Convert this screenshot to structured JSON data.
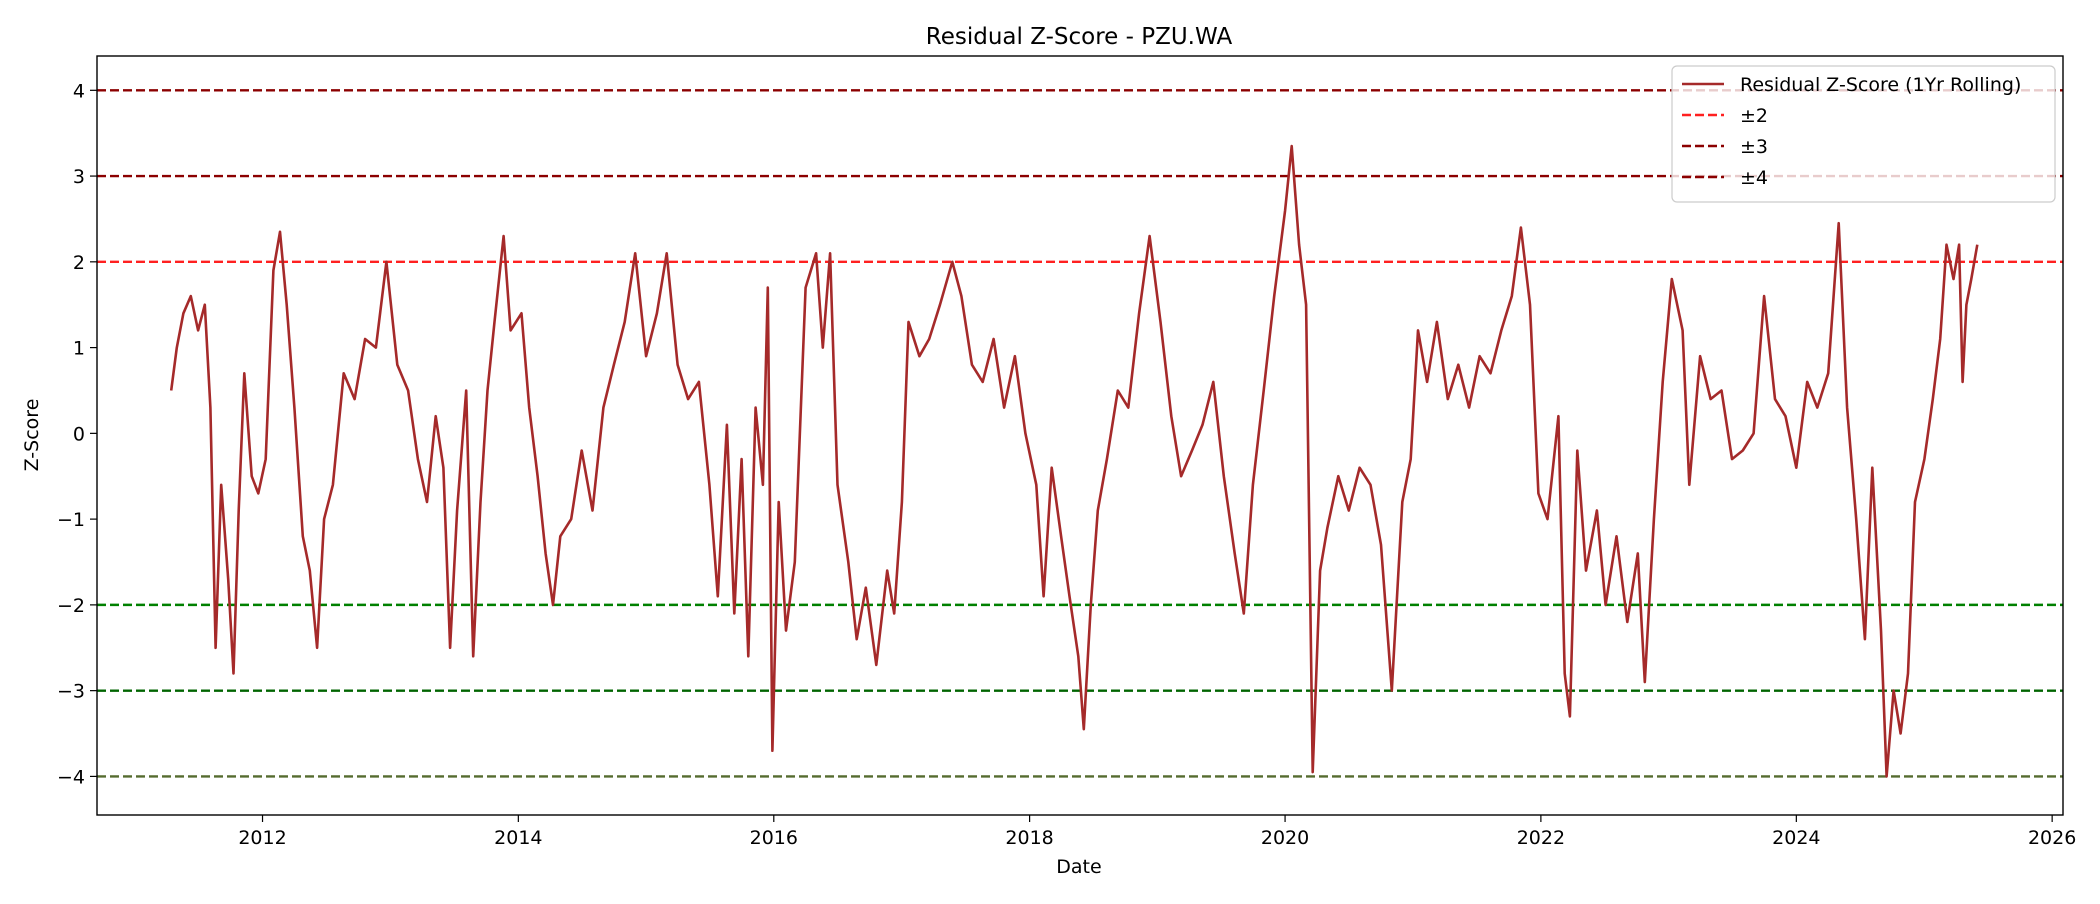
{
  "chart_data": {
    "type": "line",
    "title": "Residual Z-Score - PZU.WA",
    "xlabel": "Date",
    "ylabel": "Z-Score",
    "xlim": [
      "2010-09-15",
      "2026-02-01"
    ],
    "ylim": [
      -4.45,
      4.4
    ],
    "x_ticks": [
      "2012",
      "2014",
      "2016",
      "2018",
      "2020",
      "2022",
      "2024",
      "2026"
    ],
    "y_ticks": [
      "4",
      "3",
      "2",
      "1",
      "0",
      "−1",
      "−2",
      "−3",
      "−4"
    ],
    "grid": false,
    "legend_position": "top-right",
    "series": [
      {
        "name": "Residual Z-Score (1Yr Rolling)",
        "color": "#a52a2a",
        "points": [
          [
            "2011-04-15",
            0.5
          ],
          [
            "2011-05-01",
            1.0
          ],
          [
            "2011-05-20",
            1.4
          ],
          [
            "2011-06-10",
            1.6
          ],
          [
            "2011-07-01",
            1.2
          ],
          [
            "2011-07-20",
            1.5
          ],
          [
            "2011-08-05",
            0.3
          ],
          [
            "2011-08-20",
            -2.5
          ],
          [
            "2011-09-05",
            -0.6
          ],
          [
            "2011-09-25",
            -1.7
          ],
          [
            "2011-10-10",
            -2.8
          ],
          [
            "2011-10-25",
            -0.9
          ],
          [
            "2011-11-10",
            0.7
          ],
          [
            "2011-12-01",
            -0.5
          ],
          [
            "2011-12-20",
            -0.7
          ],
          [
            "2012-01-10",
            -0.3
          ],
          [
            "2012-02-01",
            1.9
          ],
          [
            "2012-02-20",
            2.35
          ],
          [
            "2012-03-10",
            1.5
          ],
          [
            "2012-04-01",
            0.3
          ],
          [
            "2012-04-25",
            -1.2
          ],
          [
            "2012-05-15",
            -1.6
          ],
          [
            "2012-06-05",
            -2.5
          ],
          [
            "2012-06-25",
            -1.0
          ],
          [
            "2012-07-20",
            -0.6
          ],
          [
            "2012-08-20",
            0.7
          ],
          [
            "2012-09-20",
            0.4
          ],
          [
            "2012-10-20",
            1.1
          ],
          [
            "2012-11-20",
            1.0
          ],
          [
            "2012-12-20",
            2.0
          ],
          [
            "2013-01-20",
            0.8
          ],
          [
            "2013-02-20",
            0.5
          ],
          [
            "2013-03-20",
            -0.3
          ],
          [
            "2013-04-15",
            -0.8
          ],
          [
            "2013-05-10",
            0.2
          ],
          [
            "2013-06-01",
            -0.4
          ],
          [
            "2013-06-20",
            -2.5
          ],
          [
            "2013-07-10",
            -0.9
          ],
          [
            "2013-08-05",
            0.5
          ],
          [
            "2013-08-25",
            -2.6
          ],
          [
            "2013-09-15",
            -0.8
          ],
          [
            "2013-10-05",
            0.5
          ],
          [
            "2013-10-25",
            1.3
          ],
          [
            "2013-11-20",
            2.3
          ],
          [
            "2013-12-10",
            1.2
          ],
          [
            "2014-01-10",
            1.4
          ],
          [
            "2014-02-01",
            0.3
          ],
          [
            "2014-02-25",
            -0.5
          ],
          [
            "2014-03-20",
            -1.4
          ],
          [
            "2014-04-10",
            -2.0
          ],
          [
            "2014-05-01",
            -1.2
          ],
          [
            "2014-06-01",
            -1.0
          ],
          [
            "2014-07-01",
            -0.2
          ],
          [
            "2014-08-01",
            -0.9
          ],
          [
            "2014-09-01",
            0.3
          ],
          [
            "2014-10-01",
            0.8
          ],
          [
            "2014-11-01",
            1.3
          ],
          [
            "2014-12-01",
            2.1
          ],
          [
            "2015-01-01",
            0.9
          ],
          [
            "2015-02-01",
            1.4
          ],
          [
            "2015-03-01",
            2.1
          ],
          [
            "2015-04-01",
            0.8
          ],
          [
            "2015-05-01",
            0.4
          ],
          [
            "2015-06-01",
            0.6
          ],
          [
            "2015-07-01",
            -0.6
          ],
          [
            "2015-07-25",
            -1.9
          ],
          [
            "2015-08-20",
            0.1
          ],
          [
            "2015-09-10",
            -2.1
          ],
          [
            "2015-10-01",
            -0.3
          ],
          [
            "2015-10-20",
            -2.6
          ],
          [
            "2015-11-10",
            0.3
          ],
          [
            "2015-12-01",
            -0.6
          ],
          [
            "2015-12-15",
            1.7
          ],
          [
            "2015-12-28",
            -3.7
          ],
          [
            "2016-01-15",
            -0.8
          ],
          [
            "2016-02-05",
            -2.3
          ],
          [
            "2016-03-01",
            -1.5
          ],
          [
            "2016-04-01",
            1.7
          ],
          [
            "2016-05-01",
            2.1
          ],
          [
            "2016-05-20",
            1.0
          ],
          [
            "2016-06-10",
            2.1
          ],
          [
            "2016-07-01",
            -0.6
          ],
          [
            "2016-08-01",
            -1.5
          ],
          [
            "2016-08-25",
            -2.4
          ],
          [
            "2016-09-20",
            -1.8
          ],
          [
            "2016-10-20",
            -2.7
          ],
          [
            "2016-11-20",
            -1.6
          ],
          [
            "2016-12-10",
            -2.1
          ],
          [
            "2017-01-01",
            -0.8
          ],
          [
            "2017-01-20",
            1.3
          ],
          [
            "2017-02-20",
            0.9
          ],
          [
            "2017-03-20",
            1.1
          ],
          [
            "2017-04-20",
            1.5
          ],
          [
            "2017-05-25",
            2.0
          ],
          [
            "2017-06-20",
            1.6
          ],
          [
            "2017-07-20",
            0.8
          ],
          [
            "2017-08-20",
            0.6
          ],
          [
            "2017-09-20",
            1.1
          ],
          [
            "2017-10-20",
            0.3
          ],
          [
            "2017-11-20",
            0.9
          ],
          [
            "2017-12-20",
            0.0
          ],
          [
            "2018-01-20",
            -0.6
          ],
          [
            "2018-02-10",
            -1.9
          ],
          [
            "2018-03-05",
            -0.4
          ],
          [
            "2018-04-01",
            -1.2
          ],
          [
            "2018-04-25",
            -1.9
          ],
          [
            "2018-05-20",
            -2.6
          ],
          [
            "2018-06-05",
            -3.45
          ],
          [
            "2018-06-25",
            -2.0
          ],
          [
            "2018-07-15",
            -0.9
          ],
          [
            "2018-08-10",
            -0.3
          ],
          [
            "2018-09-10",
            0.5
          ],
          [
            "2018-10-10",
            0.3
          ],
          [
            "2018-11-10",
            1.4
          ],
          [
            "2018-12-10",
            2.3
          ],
          [
            "2019-01-10",
            1.3
          ],
          [
            "2019-02-10",
            0.2
          ],
          [
            "2019-03-10",
            -0.5
          ],
          [
            "2019-04-10",
            -0.2
          ],
          [
            "2019-05-10",
            0.1
          ],
          [
            "2019-06-10",
            0.6
          ],
          [
            "2019-07-10",
            -0.5
          ],
          [
            "2019-08-10",
            -1.4
          ],
          [
            "2019-09-05",
            -2.1
          ],
          [
            "2019-10-01",
            -0.6
          ],
          [
            "2019-11-01",
            0.5
          ],
          [
            "2019-12-01",
            1.6
          ],
          [
            "2020-01-01",
            2.6
          ],
          [
            "2020-01-20",
            3.35
          ],
          [
            "2020-02-10",
            2.2
          ],
          [
            "2020-03-01",
            1.5
          ],
          [
            "2020-03-20",
            -3.95
          ],
          [
            "2020-04-10",
            -1.6
          ],
          [
            "2020-05-01",
            -1.1
          ],
          [
            "2020-06-01",
            -0.5
          ],
          [
            "2020-07-01",
            -0.9
          ],
          [
            "2020-08-01",
            -0.4
          ],
          [
            "2020-09-01",
            -0.6
          ],
          [
            "2020-10-01",
            -1.3
          ],
          [
            "2020-11-01",
            -3.0
          ],
          [
            "2020-12-01",
            -0.8
          ],
          [
            "2020-12-25",
            -0.3
          ],
          [
            "2021-01-15",
            1.2
          ],
          [
            "2021-02-10",
            0.6
          ],
          [
            "2021-03-10",
            1.3
          ],
          [
            "2021-04-10",
            0.4
          ],
          [
            "2021-05-10",
            0.8
          ],
          [
            "2021-06-10",
            0.3
          ],
          [
            "2021-07-10",
            0.9
          ],
          [
            "2021-08-10",
            0.7
          ],
          [
            "2021-09-10",
            1.2
          ],
          [
            "2021-10-10",
            1.6
          ],
          [
            "2021-11-05",
            2.4
          ],
          [
            "2021-12-01",
            1.5
          ],
          [
            "2021-12-25",
            -0.7
          ],
          [
            "2022-01-20",
            -1.0
          ],
          [
            "2022-02-20",
            0.2
          ],
          [
            "2022-03-10",
            -2.8
          ],
          [
            "2022-03-25",
            -3.3
          ],
          [
            "2022-04-15",
            -0.2
          ],
          [
            "2022-05-10",
            -1.6
          ],
          [
            "2022-06-10",
            -0.9
          ],
          [
            "2022-07-05",
            -2.0
          ],
          [
            "2022-08-05",
            -1.2
          ],
          [
            "2022-09-05",
            -2.2
          ],
          [
            "2022-10-05",
            -1.4
          ],
          [
            "2022-10-25",
            -2.9
          ],
          [
            "2022-11-20",
            -1.0
          ],
          [
            "2022-12-15",
            0.6
          ],
          [
            "2023-01-10",
            1.8
          ],
          [
            "2023-02-10",
            1.2
          ],
          [
            "2023-03-01",
            -0.6
          ],
          [
            "2023-04-01",
            0.9
          ],
          [
            "2023-05-01",
            0.4
          ],
          [
            "2023-06-01",
            0.5
          ],
          [
            "2023-07-01",
            -0.3
          ],
          [
            "2023-08-01",
            -0.2
          ],
          [
            "2023-09-01",
            0.0
          ],
          [
            "2023-10-01",
            1.6
          ],
          [
            "2023-11-01",
            0.4
          ],
          [
            "2023-12-01",
            0.2
          ],
          [
            "2024-01-01",
            -0.4
          ],
          [
            "2024-02-01",
            0.6
          ],
          [
            "2024-03-01",
            0.3
          ],
          [
            "2024-04-01",
            0.7
          ],
          [
            "2024-05-01",
            2.45
          ],
          [
            "2024-05-25",
            0.3
          ],
          [
            "2024-06-20",
            -1.0
          ],
          [
            "2024-07-15",
            -2.4
          ],
          [
            "2024-08-05",
            -0.4
          ],
          [
            "2024-08-30",
            -2.3
          ],
          [
            "2024-09-15",
            -4.0
          ],
          [
            "2024-10-05",
            -3.0
          ],
          [
            "2024-10-25",
            -3.5
          ],
          [
            "2024-11-15",
            -2.8
          ],
          [
            "2024-12-05",
            -0.8
          ],
          [
            "2025-01-01",
            -0.3
          ],
          [
            "2025-01-25",
            0.4
          ],
          [
            "2025-02-15",
            1.1
          ],
          [
            "2025-03-05",
            2.2
          ],
          [
            "2025-03-25",
            1.8
          ],
          [
            "2025-04-10",
            2.2
          ],
          [
            "2025-04-20",
            0.6
          ],
          [
            "2025-05-01",
            1.5
          ],
          [
            "2025-05-15",
            1.8
          ],
          [
            "2025-06-01",
            2.2
          ]
        ]
      }
    ],
    "thresholds": [
      {
        "value": 2,
        "color": "#ff2020",
        "legend": "±2"
      },
      {
        "value": 3,
        "color": "#8b0000",
        "legend": "±3"
      },
      {
        "value": 4,
        "color": "#8b0000",
        "legend": "±4"
      },
      {
        "value": -2,
        "color": "#008000"
      },
      {
        "value": -3,
        "color": "#006400"
      },
      {
        "value": -4,
        "color": "#556b2f"
      }
    ]
  }
}
